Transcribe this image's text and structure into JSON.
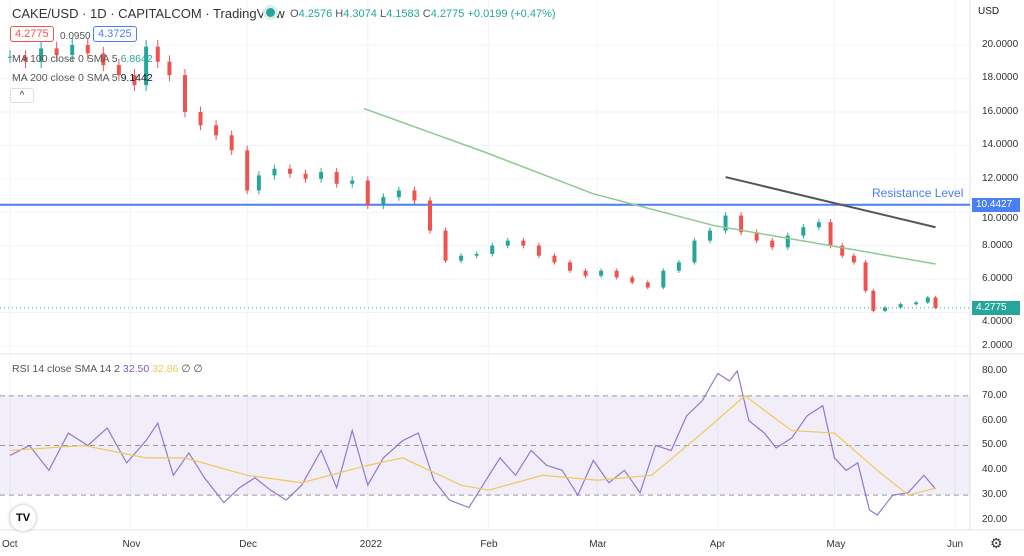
{
  "header": {
    "title": "CAKE/USD · 1D · CAPITALCOM · TradingView",
    "open": "O",
    "open_v": "4.2576",
    "high": "H",
    "high_v": "4.3074",
    "low": "L",
    "low_v": "4.1583",
    "close": "C",
    "close_v": "4.2775",
    "change": "+0.0199 (+0.47%)",
    "bid": "4.2775",
    "spread": "0.0950",
    "ask": "4.3725",
    "ma100": "MA 100 close 0 SMA 5",
    "ma100_v": "6.8642",
    "ma200": "MA 200 close 0 SMA 5",
    "ma200_v": "9.1442",
    "collapse": "^",
    "currency": "USD"
  },
  "rsi_legend": {
    "label": "RSI 14 close SMA 14 2",
    "rsi_v": "32.50",
    "sma_v": "32.86",
    "extra": "∅ ∅"
  },
  "colors": {
    "up": "#26a69a",
    "down": "#ef5350",
    "rsi": "#7e57c2",
    "rsi_sma": "#f0c85a",
    "resistance": "#4a7ff5",
    "ma": "#8fc98f",
    "trend": "#555555"
  },
  "chart_data": [
    {
      "type": "candlestick",
      "ylim": [
        2,
        20.5
      ],
      "yticks": [
        "20.0000",
        "18.0000",
        "16.0000",
        "14.0000",
        "12.0000",
        "10.0000",
        "8.0000",
        "6.0000",
        "4.0000",
        "2.0000"
      ],
      "xticks": [
        "Oct",
        "Nov",
        "Dec",
        "2022",
        "Feb",
        "Mar",
        "Apr",
        "May",
        "Jun"
      ],
      "closes": [
        [
          "2021-10-01",
          19.3
        ],
        [
          "2021-10-05",
          19.0
        ],
        [
          "2021-10-09",
          19.8
        ],
        [
          "2021-10-13",
          19.4
        ],
        [
          "2021-10-17",
          20.0
        ],
        [
          "2021-10-21",
          19.5
        ],
        [
          "2021-10-25",
          18.8
        ],
        [
          "2021-10-29",
          18.2
        ],
        [
          "2021-11-02",
          17.6
        ],
        [
          "2021-11-05",
          19.9
        ],
        [
          "2021-11-08",
          19.0
        ],
        [
          "2021-11-11",
          18.2
        ],
        [
          "2021-11-15",
          16.0
        ],
        [
          "2021-11-19",
          15.2
        ],
        [
          "2021-11-23",
          14.6
        ],
        [
          "2021-11-27",
          13.7
        ],
        [
          "2021-12-01",
          11.3
        ],
        [
          "2021-12-04",
          12.2
        ],
        [
          "2021-12-08",
          12.6
        ],
        [
          "2021-12-12",
          12.3
        ],
        [
          "2021-12-16",
          12.0
        ],
        [
          "2021-12-20",
          12.4
        ],
        [
          "2021-12-24",
          11.7
        ],
        [
          "2021-12-28",
          11.9
        ],
        [
          "2022-01-01",
          10.4
        ],
        [
          "2022-01-05",
          10.9
        ],
        [
          "2022-01-09",
          11.3
        ],
        [
          "2022-01-13",
          10.7
        ],
        [
          "2022-01-17",
          8.9
        ],
        [
          "2022-01-21",
          7.1
        ],
        [
          "2022-01-25",
          7.4
        ],
        [
          "2022-01-29",
          7.5
        ],
        [
          "2022-02-02",
          8.0
        ],
        [
          "2022-02-06",
          8.3
        ],
        [
          "2022-02-10",
          8.0
        ],
        [
          "2022-02-14",
          7.4
        ],
        [
          "2022-02-18",
          7.0
        ],
        [
          "2022-02-22",
          6.5
        ],
        [
          "2022-02-26",
          6.2
        ],
        [
          "2022-03-02",
          6.5
        ],
        [
          "2022-03-06",
          6.1
        ],
        [
          "2022-03-10",
          5.8
        ],
        [
          "2022-03-14",
          5.5
        ],
        [
          "2022-03-18",
          6.5
        ],
        [
          "2022-03-22",
          7.0
        ],
        [
          "2022-03-26",
          8.3
        ],
        [
          "2022-03-30",
          8.9
        ],
        [
          "2022-04-03",
          9.8
        ],
        [
          "2022-04-07",
          8.8
        ],
        [
          "2022-04-11",
          8.3
        ],
        [
          "2022-04-15",
          7.9
        ],
        [
          "2022-04-19",
          8.6
        ],
        [
          "2022-04-23",
          9.1
        ],
        [
          "2022-04-27",
          9.4
        ],
        [
          "2022-04-30",
          8.0
        ],
        [
          "2022-05-03",
          7.4
        ],
        [
          "2022-05-06",
          7.0
        ],
        [
          "2022-05-09",
          5.3
        ],
        [
          "2022-05-11",
          4.1
        ],
        [
          "2022-05-14",
          4.3
        ],
        [
          "2022-05-18",
          4.5
        ],
        [
          "2022-05-22",
          4.6
        ],
        [
          "2022-05-25",
          4.9
        ],
        [
          "2022-05-27",
          4.2775
        ]
      ],
      "ma": [
        [
          "2021-12-31",
          16.2
        ],
        [
          "2022-01-31",
          13.6
        ],
        [
          "2022-02-28",
          11.1
        ],
        [
          "2022-03-31",
          9.2
        ],
        [
          "2022-04-30",
          8.0
        ],
        [
          "2022-05-27",
          6.9
        ]
      ],
      "trendline": [
        [
          "2022-04-03",
          12.1
        ],
        [
          "2022-05-27",
          9.1
        ]
      ],
      "resistance": {
        "value": 10.4427,
        "label": "Resistance Level",
        "tag": "10.4427"
      },
      "last_price": "4.2775"
    },
    {
      "type": "line",
      "ylim": [
        16,
        84
      ],
      "yticks": [
        "80.00",
        "70.00",
        "60.00",
        "50.00",
        "40.00",
        "30.00",
        "20.00"
      ],
      "band": [
        30,
        70
      ],
      "rsi": [
        [
          "2021-10-01",
          46
        ],
        [
          "2021-10-06",
          50
        ],
        [
          "2021-10-11",
          40
        ],
        [
          "2021-10-16",
          55
        ],
        [
          "2021-10-21",
          50
        ],
        [
          "2021-10-26",
          57
        ],
        [
          "2021-10-31",
          43
        ],
        [
          "2021-11-05",
          52
        ],
        [
          "2021-11-08",
          59
        ],
        [
          "2021-11-12",
          38
        ],
        [
          "2021-11-16",
          47
        ],
        [
          "2021-11-20",
          37
        ],
        [
          "2021-11-25",
          27
        ],
        [
          "2021-11-29",
          33
        ],
        [
          "2021-12-03",
          37
        ],
        [
          "2021-12-07",
          32
        ],
        [
          "2021-12-11",
          28
        ],
        [
          "2021-12-15",
          34
        ],
        [
          "2021-12-20",
          48
        ],
        [
          "2021-12-24",
          33
        ],
        [
          "2021-12-28",
          56
        ],
        [
          "2022-01-01",
          34
        ],
        [
          "2022-01-05",
          45
        ],
        [
          "2022-01-10",
          52
        ],
        [
          "2022-01-14",
          55
        ],
        [
          "2022-01-18",
          36
        ],
        [
          "2022-01-22",
          28
        ],
        [
          "2022-01-27",
          25
        ],
        [
          "2022-01-31",
          35
        ],
        [
          "2022-02-04",
          45
        ],
        [
          "2022-02-08",
          38
        ],
        [
          "2022-02-12",
          48
        ],
        [
          "2022-02-16",
          42
        ],
        [
          "2022-02-20",
          40
        ],
        [
          "2022-02-24",
          30
        ],
        [
          "2022-02-28",
          44
        ],
        [
          "2022-03-04",
          35
        ],
        [
          "2022-03-08",
          40
        ],
        [
          "2022-03-12",
          31
        ],
        [
          "2022-03-16",
          50
        ],
        [
          "2022-03-20",
          48
        ],
        [
          "2022-03-24",
          62
        ],
        [
          "2022-03-28",
          68
        ],
        [
          "2022-04-01",
          79
        ],
        [
          "2022-04-04",
          76
        ],
        [
          "2022-04-06",
          80
        ],
        [
          "2022-04-09",
          60
        ],
        [
          "2022-04-13",
          55
        ],
        [
          "2022-04-16",
          49
        ],
        [
          "2022-04-20",
          53
        ],
        [
          "2022-04-24",
          62
        ],
        [
          "2022-04-28",
          66
        ],
        [
          "2022-05-01",
          45
        ],
        [
          "2022-05-04",
          40
        ],
        [
          "2022-05-07",
          43
        ],
        [
          "2022-05-10",
          24
        ],
        [
          "2022-05-12",
          22
        ],
        [
          "2022-05-16",
          30
        ],
        [
          "2022-05-20",
          31
        ],
        [
          "2022-05-24",
          38
        ],
        [
          "2022-05-27",
          32.5
        ]
      ],
      "sma": [
        [
          "2021-10-01",
          48
        ],
        [
          "2021-10-20",
          50
        ],
        [
          "2021-11-05",
          45
        ],
        [
          "2021-11-15",
          45
        ],
        [
          "2021-12-01",
          38
        ],
        [
          "2021-12-15",
          35
        ],
        [
          "2022-01-01",
          42
        ],
        [
          "2022-01-10",
          45
        ],
        [
          "2022-01-25",
          34
        ],
        [
          "2022-02-01",
          32
        ],
        [
          "2022-02-15",
          38
        ],
        [
          "2022-03-01",
          36
        ],
        [
          "2022-03-15",
          38
        ],
        [
          "2022-03-28",
          55
        ],
        [
          "2022-04-08",
          70
        ],
        [
          "2022-04-20",
          56
        ],
        [
          "2022-05-01",
          55
        ],
        [
          "2022-05-12",
          40
        ],
        [
          "2022-05-20",
          30
        ],
        [
          "2022-05-27",
          32.86
        ]
      ]
    }
  ]
}
